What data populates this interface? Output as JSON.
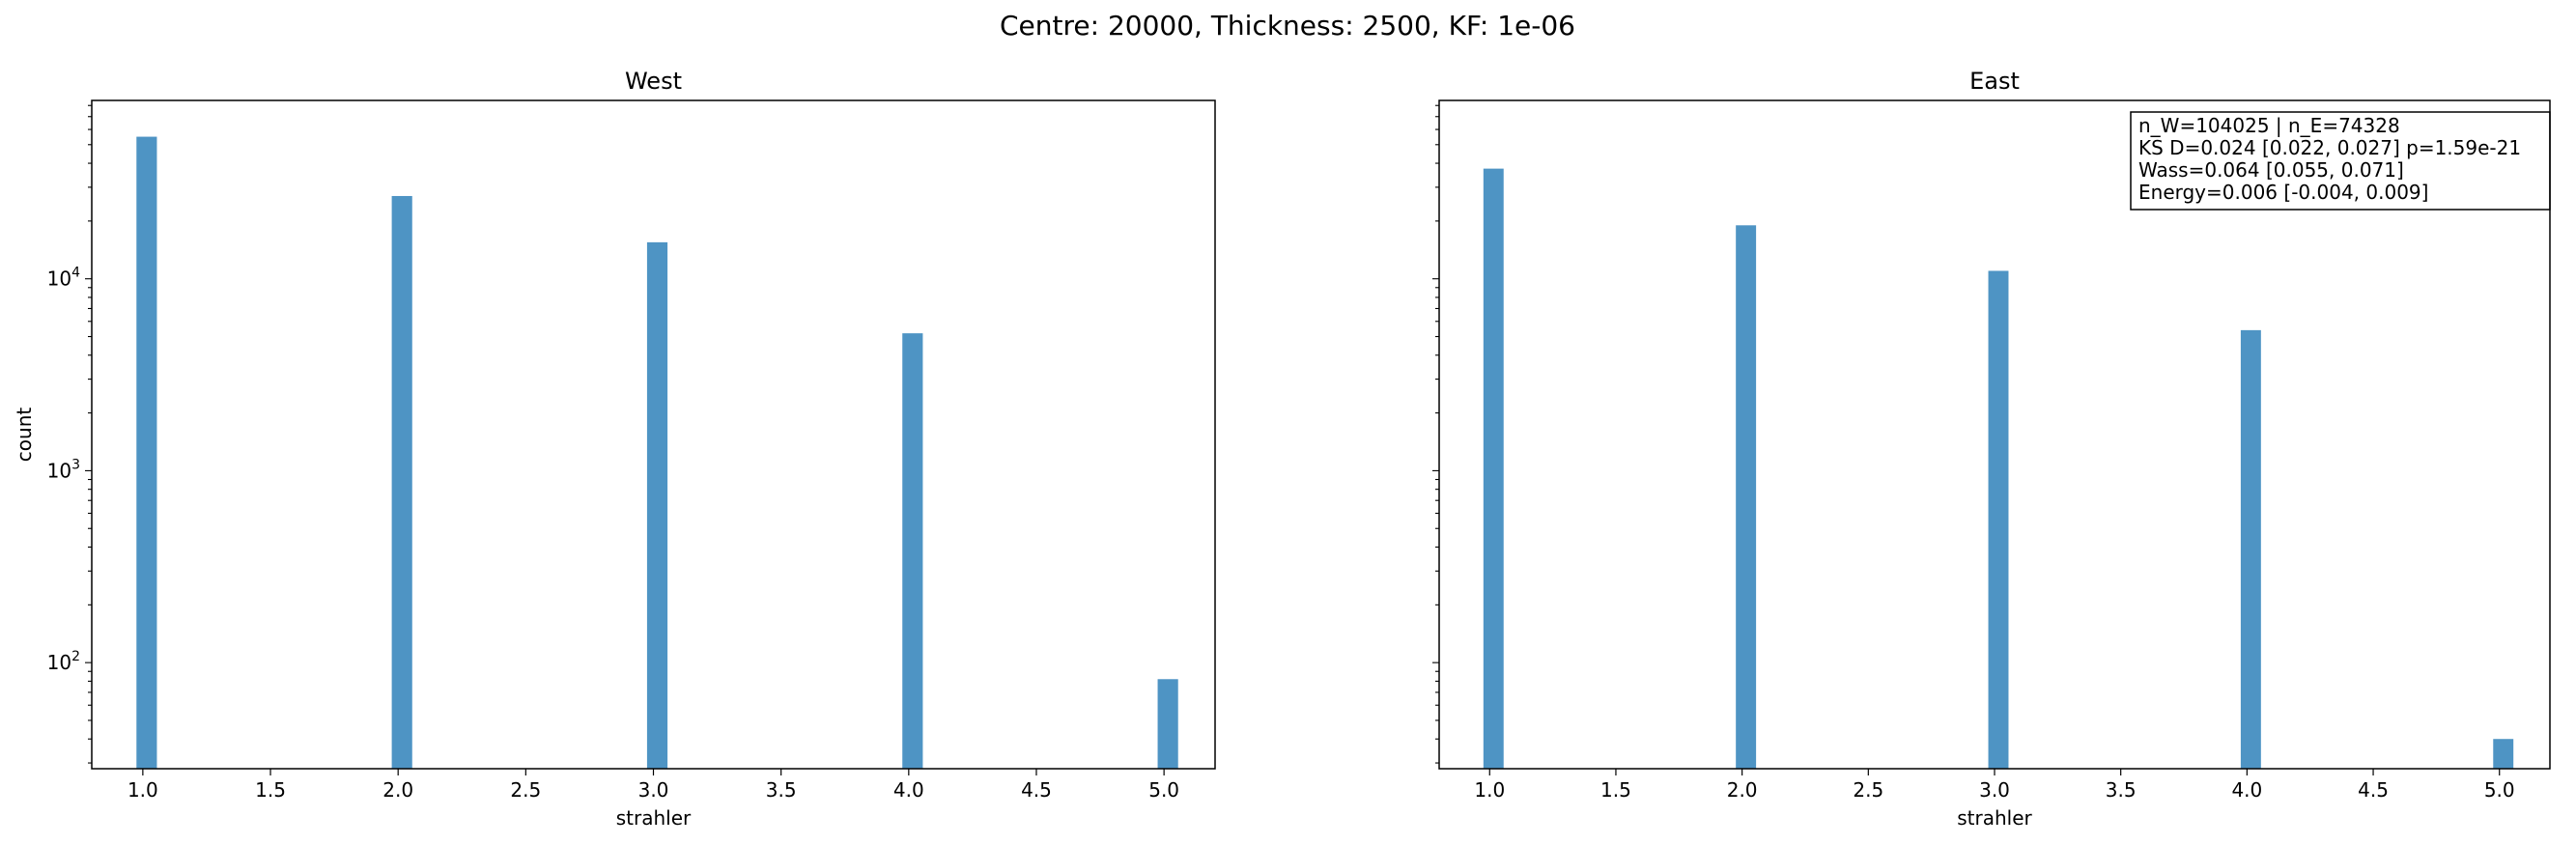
{
  "figure_title": "Centre: 20000, Thickness: 2500, KF: 1e-06",
  "colors": {
    "bar": "#4e94c4",
    "axes": "#000000",
    "background": "#ffffff"
  },
  "chart_data": [
    {
      "type": "bar",
      "title": "West",
      "xlabel": "strahler",
      "ylabel": "count",
      "yscale": "log",
      "xlim": [
        0.8,
        5.2
      ],
      "ylim": [
        28,
        85000
      ],
      "xticks": [
        "1.0",
        "1.5",
        "2.0",
        "2.5",
        "3.0",
        "3.5",
        "4.0",
        "4.5",
        "5.0"
      ],
      "yticks": [
        {
          "base": "10",
          "exp": "2"
        },
        {
          "base": "10",
          "exp": "3"
        },
        {
          "base": "10",
          "exp": "4"
        }
      ],
      "x": [
        1,
        2,
        3,
        4,
        5
      ],
      "values": [
        55000,
        27000,
        15500,
        5200,
        82
      ],
      "grid": false,
      "annotation": []
    },
    {
      "type": "bar",
      "title": "East",
      "xlabel": "strahler",
      "ylabel": "",
      "yscale": "log",
      "xlim": [
        0.8,
        5.2
      ],
      "ylim": [
        28,
        85000
      ],
      "xticks": [
        "1.0",
        "1.5",
        "2.0",
        "2.5",
        "3.0",
        "3.5",
        "4.0",
        "4.5",
        "5.0"
      ],
      "yticks": [],
      "x": [
        1,
        2,
        3,
        4,
        5
      ],
      "values": [
        37500,
        19000,
        11000,
        5400,
        40
      ],
      "grid": false,
      "annotation": [
        "n_W=104025 | n_E=74328",
        "KS D=0.024 [0.022, 0.027]  p=1.59e-21",
        "Wass=0.064 [0.055, 0.071]",
        "Energy=0.006 [-0.004, 0.009]"
      ]
    }
  ]
}
